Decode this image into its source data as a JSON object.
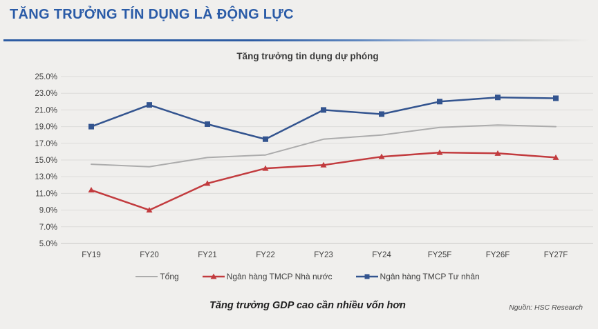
{
  "page": {
    "header_title": "TĂNG TRƯỞNG TÍN DỤNG LÀ ĐỘNG LỰC",
    "footer_note": "Tăng trưởng GDP cao cần nhiều vốn hơn",
    "source": "Nguồn: HSC Research",
    "colors": {
      "background": "#F0EFED",
      "header_blue": "#2A5BA7",
      "gridline": "#DCDBD9",
      "axis_line": "#C8C7C5",
      "text": "#3F3F3F"
    }
  },
  "chart_data": {
    "type": "line",
    "title": "Tăng trưởng tin dụng dự phóng",
    "categories": [
      "FY19",
      "FY20",
      "FY21",
      "FY22",
      "FY23",
      "FY24",
      "FY25F",
      "FY26F",
      "FY27F"
    ],
    "series": [
      {
        "name": "Tổng",
        "color": "#ACACAC",
        "marker": "none",
        "line_width": 2,
        "values": [
          14.5,
          14.2,
          15.3,
          15.6,
          17.5,
          18.0,
          18.9,
          19.2,
          19.0
        ]
      },
      {
        "name": "Ngân hàng TMCP Nhà nước",
        "color": "#C23B3E",
        "marker": "triangle",
        "line_width": 2.5,
        "values": [
          11.4,
          9.0,
          12.2,
          14.0,
          14.4,
          15.4,
          15.9,
          15.8,
          15.3
        ]
      },
      {
        "name": "Ngân hàng TMCP Tư nhân",
        "color": "#33548F",
        "marker": "square",
        "line_width": 2.5,
        "values": [
          19.0,
          21.6,
          19.3,
          17.5,
          21.0,
          20.5,
          22.0,
          22.5,
          22.4
        ]
      }
    ],
    "xlabel": "",
    "ylabel": "",
    "ylim": [
      5,
      25
    ],
    "ytick_step": 2,
    "ytick_format": "percent_one_decimal",
    "grid": true,
    "legend_position": "bottom"
  }
}
